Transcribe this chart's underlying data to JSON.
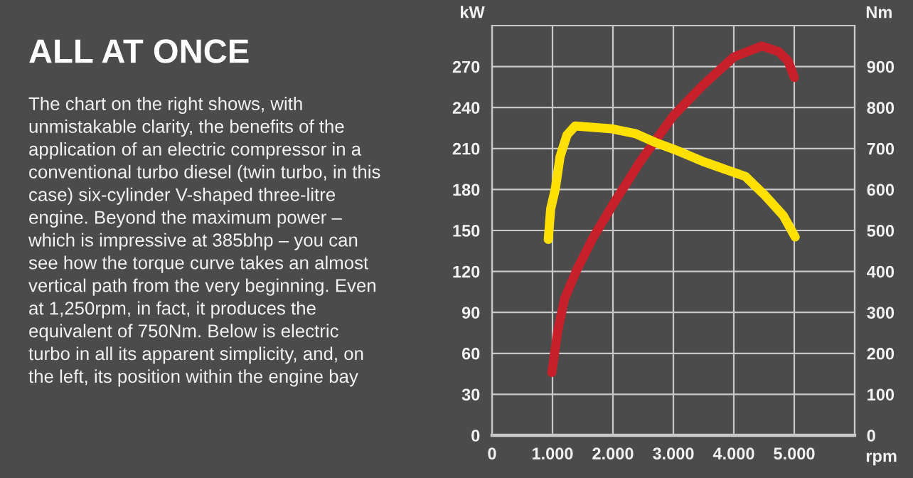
{
  "chart_data": {
    "type": "line",
    "title": "ALL AT ONCE",
    "annotations": [
      "The chart on the right shows, with unmistakable clarity, the benefits of the application of an electric compressor in a conventional turbo diesel (twin turbo, in this case) six-cylinder V-shaped three-litre engine. Beyond the maximum power – which is impressive at 385bhp – you can see how the torque curve takes an almost vertical path from the very beginning. Even at 1,250rpm, in fact, it produces the equivalent of 750Nm. Below is electric turbo in all its apparent simplicity, and, on the left, its position within the engine bay"
    ],
    "xlabel": "rpm",
    "ylabel": "kW",
    "y2label": "Nm",
    "xlim": [
      0,
      6000
    ],
    "xticks": [
      0,
      {
        "value": 1000,
        "label": "1.000"
      },
      {
        "value": 2000,
        "label": "2.000"
      },
      {
        "value": 3000,
        "label": "3.000"
      },
      {
        "value": 4000,
        "label": "4.000"
      },
      {
        "value": 5000,
        "label": "5.000"
      }
    ],
    "ylim": [
      0,
      300
    ],
    "yticks": [
      0,
      30,
      60,
      90,
      120,
      150,
      180,
      210,
      240,
      270
    ],
    "y2lim": [
      0,
      1000
    ],
    "y2ticks": [
      0,
      100,
      200,
      300,
      400,
      500,
      600,
      700,
      800,
      900
    ],
    "grid": true,
    "marker": "none",
    "line_style": "solid",
    "series": [
      {
        "color": "#c8202a",
        "axis": "y",
        "x": [
          990,
          1085,
          1200,
          1400,
          1675,
          2000,
          2460,
          3000,
          3480,
          4000,
          4465,
          4740,
          4900,
          5000
        ],
        "values": [
          46,
          76,
          100,
          121,
          145,
          169,
          201,
          234,
          256,
          277,
          285,
          281,
          274,
          262
        ]
      },
      {
        "color": "#ffe000",
        "axis": "y2",
        "x": [
          930,
          970,
          1045,
          1125,
          1240,
          1375,
          1990,
          2380,
          2700,
          3010,
          3480,
          3880,
          4190,
          4500,
          4820,
          5015
        ],
        "values": [
          478,
          553,
          600,
          680,
          733,
          755,
          748,
          736,
          715,
          698,
          669,
          648,
          632,
          588,
          536,
          484
        ]
      }
    ]
  }
}
